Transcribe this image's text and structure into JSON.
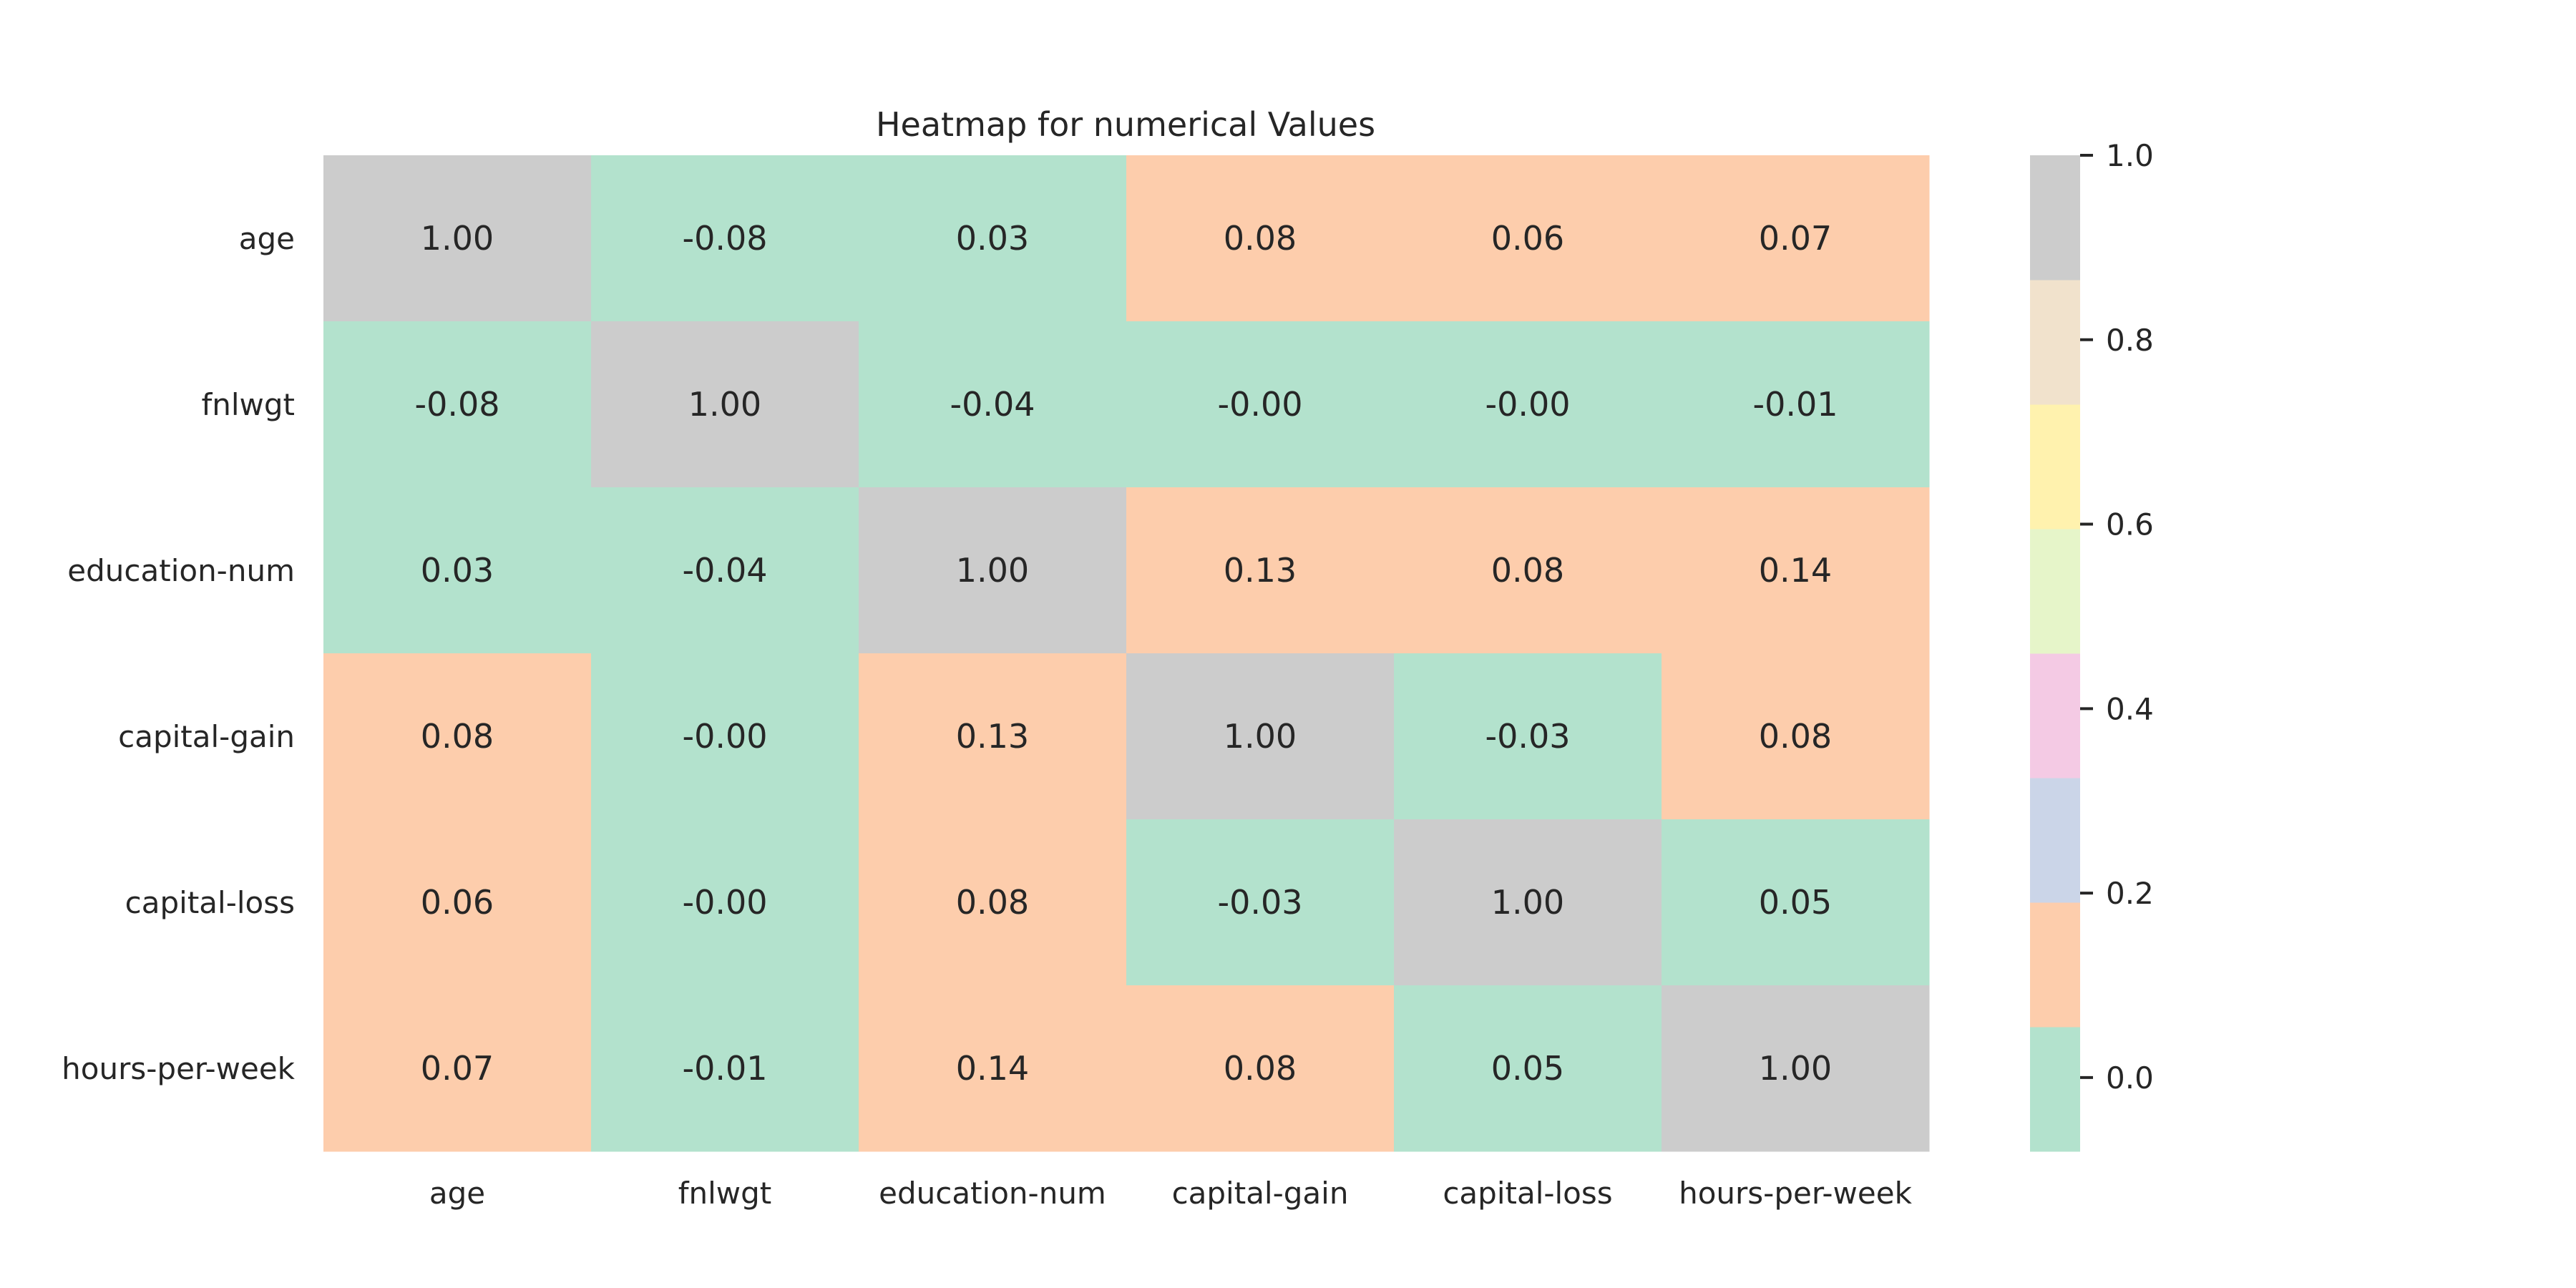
{
  "chart_data": {
    "type": "heatmap",
    "title": "Heatmap for numerical Values",
    "xlabel": "",
    "ylabel": "",
    "x_categories": [
      "age",
      "fnlwgt",
      "education-num",
      "capital-gain",
      "capital-loss",
      "hours-per-week"
    ],
    "y_categories": [
      "age",
      "fnlwgt",
      "education-num",
      "capital-gain",
      "capital-loss",
      "hours-per-week"
    ],
    "values": [
      [
        1.0,
        -0.08,
        0.03,
        0.08,
        0.06,
        0.07
      ],
      [
        -0.08,
        1.0,
        -0.04,
        -0.0,
        -0.0,
        -0.01
      ],
      [
        0.03,
        -0.04,
        1.0,
        0.13,
        0.08,
        0.14
      ],
      [
        0.08,
        -0.0,
        0.13,
        1.0,
        -0.03,
        0.08
      ],
      [
        0.06,
        -0.0,
        0.08,
        -0.03,
        1.0,
        0.05
      ],
      [
        0.07,
        -0.01,
        0.14,
        0.08,
        0.05,
        1.0
      ]
    ],
    "annotations_format": "0.00",
    "colorbar": {
      "range": [
        -0.08,
        1.0
      ],
      "ticks": [
        0.0,
        0.2,
        0.4,
        0.6,
        0.8,
        1.0
      ],
      "tick_labels": [
        "0.0",
        "0.2",
        "0.4",
        "0.6",
        "0.8",
        "1.0"
      ],
      "colors": [
        "#b3e2cd",
        "#fdcdac",
        "#cbd5e8",
        "#f4cae4",
        "#e6f5c9",
        "#fff2ae",
        "#f1e2cc",
        "#cccccc"
      ]
    },
    "grid": false,
    "legend": "right"
  }
}
